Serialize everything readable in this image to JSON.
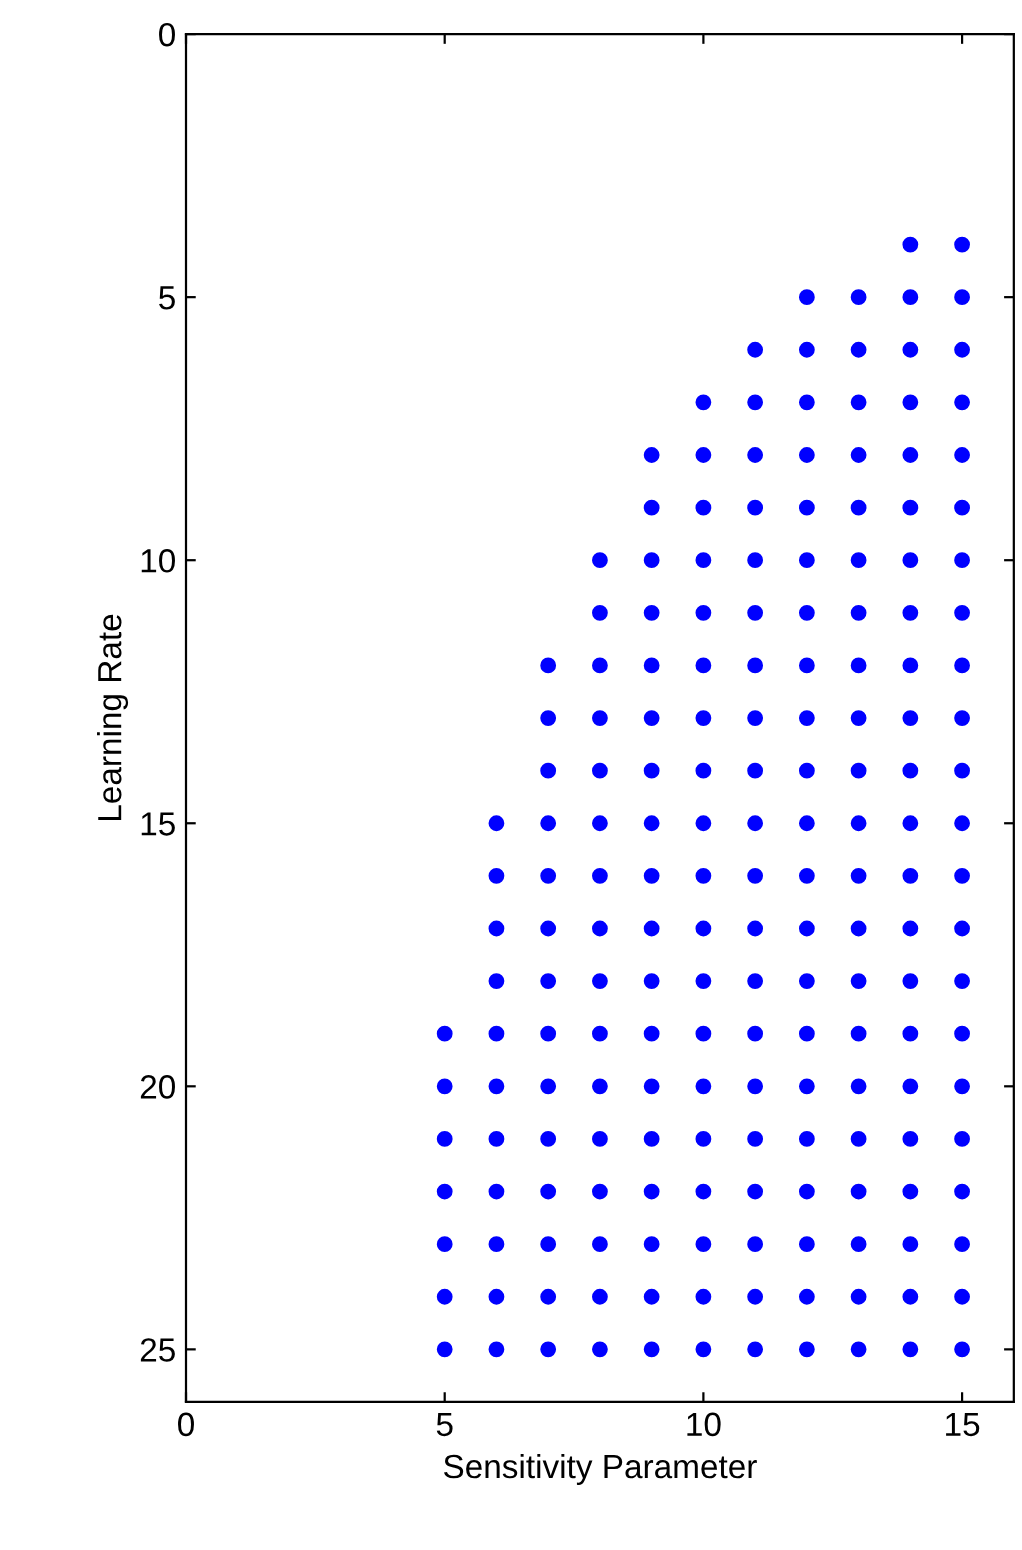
{
  "chart_data": {
    "type": "scatter",
    "xlabel": "Sensitivity Parameter",
    "ylabel": "Learning Rate",
    "xlim": [
      0,
      16
    ],
    "ylim": [
      26,
      0
    ],
    "xticks": [
      0,
      5,
      10,
      15
    ],
    "yticks": [
      0,
      5,
      10,
      15,
      20,
      25
    ],
    "marker": "circle",
    "grid": false,
    "legend": false,
    "series": [
      {
        "color": "#0000ff",
        "x": [
          5,
          5,
          5,
          5,
          5,
          5,
          5,
          6,
          6,
          6,
          6,
          6,
          6,
          6,
          6,
          6,
          6,
          6,
          7,
          7,
          7,
          7,
          7,
          7,
          7,
          7,
          7,
          7,
          7,
          7,
          7,
          7,
          8,
          8,
          8,
          8,
          8,
          8,
          8,
          8,
          8,
          8,
          8,
          8,
          8,
          8,
          8,
          8,
          9,
          9,
          9,
          9,
          9,
          9,
          9,
          9,
          9,
          9,
          9,
          9,
          9,
          9,
          9,
          9,
          9,
          9,
          10,
          10,
          10,
          10,
          10,
          10,
          10,
          10,
          10,
          10,
          10,
          10,
          10,
          10,
          10,
          10,
          10,
          10,
          10,
          11,
          11,
          11,
          11,
          11,
          11,
          11,
          11,
          11,
          11,
          11,
          11,
          11,
          11,
          11,
          11,
          11,
          11,
          11,
          11,
          12,
          12,
          12,
          12,
          12,
          12,
          12,
          12,
          12,
          12,
          12,
          12,
          12,
          12,
          12,
          12,
          12,
          12,
          12,
          12,
          12,
          13,
          13,
          13,
          13,
          13,
          13,
          13,
          13,
          13,
          13,
          13,
          13,
          13,
          13,
          13,
          13,
          13,
          13,
          13,
          13,
          13,
          14,
          14,
          14,
          14,
          14,
          14,
          14,
          14,
          14,
          14,
          14,
          14,
          14,
          14,
          14,
          14,
          14,
          14,
          14,
          14,
          14,
          14,
          15,
          15,
          15,
          15,
          15,
          15,
          15,
          15,
          15,
          15,
          15,
          15,
          15,
          15,
          15,
          15,
          15,
          15,
          15,
          15,
          15,
          15
        ],
        "values": [
          19,
          20,
          21,
          22,
          23,
          24,
          25,
          15,
          16,
          17,
          18,
          19,
          20,
          21,
          22,
          23,
          24,
          25,
          12,
          13,
          14,
          15,
          16,
          17,
          18,
          19,
          20,
          21,
          22,
          23,
          24,
          25,
          10,
          11,
          12,
          13,
          14,
          15,
          16,
          17,
          18,
          19,
          20,
          21,
          22,
          23,
          24,
          25,
          8,
          9,
          10,
          11,
          12,
          13,
          14,
          15,
          16,
          17,
          18,
          19,
          20,
          21,
          22,
          23,
          24,
          25,
          7,
          8,
          9,
          10,
          11,
          12,
          13,
          14,
          15,
          16,
          17,
          18,
          19,
          20,
          21,
          22,
          23,
          24,
          25,
          6,
          7,
          8,
          9,
          10,
          11,
          12,
          13,
          14,
          15,
          16,
          17,
          18,
          19,
          20,
          21,
          22,
          23,
          24,
          25,
          5,
          6,
          7,
          8,
          9,
          10,
          11,
          12,
          13,
          14,
          15,
          16,
          17,
          18,
          19,
          20,
          21,
          22,
          23,
          24,
          25,
          5,
          6,
          7,
          8,
          9,
          10,
          11,
          12,
          13,
          14,
          15,
          16,
          17,
          18,
          19,
          20,
          21,
          22,
          23,
          24,
          25,
          4,
          5,
          6,
          7,
          8,
          9,
          10,
          11,
          12,
          13,
          14,
          15,
          16,
          17,
          18,
          19,
          20,
          21,
          22,
          23,
          24,
          25,
          4,
          5,
          6,
          7,
          8,
          9,
          10,
          11,
          12,
          13,
          14,
          15,
          16,
          17,
          18,
          19,
          20,
          21,
          22,
          23,
          24,
          25
        ]
      }
    ]
  }
}
